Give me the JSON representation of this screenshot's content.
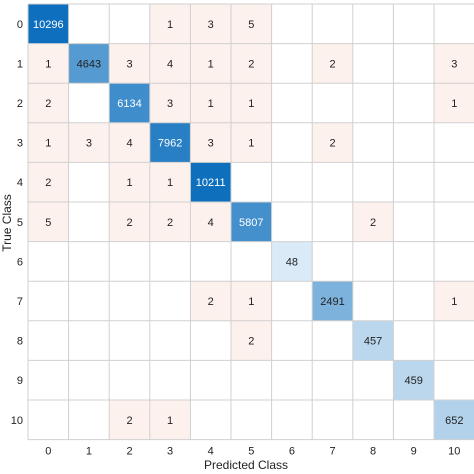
{
  "chart_data": {
    "type": "heatmap",
    "title": "",
    "xlabel": "Predicted Class",
    "ylabel": "True Class",
    "x_categories": [
      "0",
      "1",
      "2",
      "3",
      "4",
      "5",
      "6",
      "7",
      "8",
      "9",
      "10"
    ],
    "y_categories": [
      "0",
      "1",
      "2",
      "3",
      "4",
      "5",
      "6",
      "7",
      "8",
      "9",
      "10"
    ],
    "cells": [
      [
        0,
        0,
        10296
      ],
      [
        0,
        3,
        1
      ],
      [
        0,
        4,
        3
      ],
      [
        0,
        5,
        5
      ],
      [
        1,
        0,
        1
      ],
      [
        1,
        1,
        4643
      ],
      [
        1,
        2,
        3
      ],
      [
        1,
        3,
        4
      ],
      [
        1,
        4,
        1
      ],
      [
        1,
        5,
        2
      ],
      [
        1,
        7,
        2
      ],
      [
        1,
        10,
        3
      ],
      [
        2,
        0,
        2
      ],
      [
        2,
        2,
        6134
      ],
      [
        2,
        3,
        3
      ],
      [
        2,
        4,
        1
      ],
      [
        2,
        5,
        1
      ],
      [
        2,
        10,
        1
      ],
      [
        3,
        0,
        1
      ],
      [
        3,
        1,
        3
      ],
      [
        3,
        2,
        4
      ],
      [
        3,
        3,
        7962
      ],
      [
        3,
        4,
        3
      ],
      [
        3,
        5,
        1
      ],
      [
        3,
        7,
        2
      ],
      [
        4,
        0,
        2
      ],
      [
        4,
        2,
        1
      ],
      [
        4,
        3,
        1
      ],
      [
        4,
        4,
        10211
      ],
      [
        5,
        0,
        5
      ],
      [
        5,
        2,
        2
      ],
      [
        5,
        3,
        2
      ],
      [
        5,
        4,
        4
      ],
      [
        5,
        5,
        5807
      ],
      [
        5,
        8,
        2
      ],
      [
        6,
        6,
        48
      ],
      [
        7,
        4,
        2
      ],
      [
        7,
        5,
        1
      ],
      [
        7,
        7,
        2491
      ],
      [
        7,
        10,
        1
      ],
      [
        8,
        5,
        2
      ],
      [
        8,
        8,
        457
      ],
      [
        9,
        9,
        459
      ],
      [
        10,
        2,
        2
      ],
      [
        10,
        3,
        1
      ],
      [
        10,
        10,
        652
      ]
    ],
    "colors": {
      "diag_high": "#0d6fbd",
      "diag_low": "#e9f3fb",
      "offdiag": "#fcf1ec",
      "grid": "#d0d0d0",
      "text_dark": "#222222",
      "text_light": "#ffffff"
    }
  }
}
